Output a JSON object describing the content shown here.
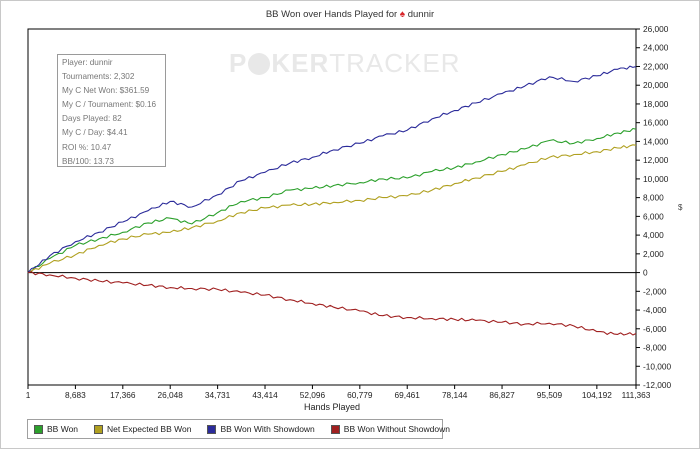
{
  "chart_data": {
    "type": "line",
    "title_prefix": "BB Won over Hands Played for",
    "title_player": "dunnir",
    "xlabel": "Hands Played",
    "x_ticks": [
      1,
      8683,
      17366,
      26048,
      34731,
      43414,
      52096,
      60779,
      69461,
      78144,
      86827,
      95509,
      104192,
      111363
    ],
    "x_tick_labels": [
      "1",
      "8,683",
      "17,366",
      "26,048",
      "34,731",
      "43,414",
      "52,096",
      "60,779",
      "69,461",
      "78,144",
      "86,827",
      "95,509",
      "104,192",
      "111,363"
    ],
    "xlim": [
      1,
      111363
    ],
    "ylim": [
      -12000,
      26000
    ],
    "y_ticks": [
      -12000,
      -10000,
      -8000,
      -6000,
      -4000,
      -2000,
      0,
      2000,
      4000,
      6000,
      8000,
      10000,
      12000,
      14000,
      16000,
      18000,
      20000,
      22000,
      24000,
      26000
    ],
    "y_tick_labels": [
      "-12,000",
      "-10,000",
      "-8,000",
      "-6,000",
      "-4,000",
      "-2,000",
      "0",
      "2,000",
      "4,000",
      "6,000",
      "8,000",
      "10,000",
      "12,000",
      "14,000",
      "16,000",
      "18,000",
      "20,000",
      "22,000",
      "24,000",
      "26,000"
    ],
    "ylabel": "",
    "legend_position": "bottom-left",
    "grid": false,
    "series": [
      {
        "name": "BB Won",
        "color": "#2ca02c",
        "x": [
          1,
          4000,
          8683,
          13000,
          17366,
          22000,
          26048,
          30000,
          34731,
          39000,
          43414,
          48000,
          52096,
          56000,
          60779,
          65000,
          69461,
          74000,
          78144,
          82000,
          86827,
          91000,
          95509,
          100000,
          104192,
          108000,
          111363
        ],
        "y": [
          0,
          1500,
          2900,
          3600,
          4300,
          5300,
          5800,
          5200,
          6400,
          7600,
          8000,
          8800,
          9000,
          9300,
          9600,
          10000,
          10100,
          10800,
          11200,
          11800,
          12600,
          13200,
          14100,
          13800,
          14300,
          14900,
          15300
        ]
      },
      {
        "name": "Net Expected BB Won",
        "color": "#b0a020",
        "x": [
          1,
          4000,
          8683,
          13000,
          17366,
          22000,
          26048,
          30000,
          34731,
          39000,
          43414,
          48000,
          52096,
          56000,
          60779,
          65000,
          69461,
          74000,
          78144,
          82000,
          86827,
          91000,
          95509,
          100000,
          104192,
          108000,
          111363
        ],
        "y": [
          0,
          1000,
          1900,
          2900,
          3600,
          4100,
          4300,
          4800,
          5500,
          6400,
          6900,
          7200,
          7300,
          7500,
          7700,
          8000,
          8200,
          8800,
          9500,
          10100,
          10800,
          11500,
          12300,
          12600,
          12900,
          13300,
          13600
        ]
      },
      {
        "name": "BB Won With Showdown",
        "color": "#2b2b9a",
        "x": [
          1,
          4000,
          8683,
          13000,
          17366,
          22000,
          26048,
          30000,
          34731,
          39000,
          43414,
          48000,
          52096,
          56000,
          60779,
          65000,
          69461,
          74000,
          78144,
          82000,
          86827,
          91000,
          95509,
          100000,
          104192,
          108000,
          111363
        ],
        "y": [
          0,
          1800,
          3300,
          4300,
          5400,
          6600,
          7600,
          7000,
          8300,
          9800,
          10700,
          11700,
          12300,
          13100,
          13800,
          14600,
          15200,
          16400,
          17300,
          18100,
          19100,
          19900,
          20900,
          20400,
          21000,
          21700,
          22000
        ]
      },
      {
        "name": "BB Won Without Showdown",
        "color": "#a02020",
        "x": [
          1,
          4000,
          8683,
          13000,
          17366,
          22000,
          26048,
          30000,
          34731,
          39000,
          43414,
          48000,
          52096,
          56000,
          60779,
          65000,
          69461,
          74000,
          78144,
          82000,
          86827,
          91000,
          95509,
          100000,
          104192,
          108000,
          111363
        ],
        "y": [
          0,
          -250,
          -600,
          -900,
          -1100,
          -1350,
          -1600,
          -1700,
          -1800,
          -2100,
          -2400,
          -2900,
          -3300,
          -3700,
          -4100,
          -4600,
          -4800,
          -4900,
          -5000,
          -5100,
          -5300,
          -5500,
          -5400,
          -5700,
          -6300,
          -6600,
          -6500
        ]
      }
    ]
  },
  "info": {
    "lines": [
      "Player: dunnir",
      "Tournaments: 2,302",
      "My C Net Won: $361.59",
      "My C / Tournament: $0.16",
      "Days Played: 82",
      "My C / Day: $4.41",
      "ROI %: 10.47",
      "BB/100: 13.73"
    ]
  },
  "watermark": {
    "part1": "P",
    "part2": "KER",
    "part3": "TRACKER"
  },
  "colors": {
    "axis": "#000000",
    "zero_line": "#000000",
    "plot_border": "#000000"
  }
}
